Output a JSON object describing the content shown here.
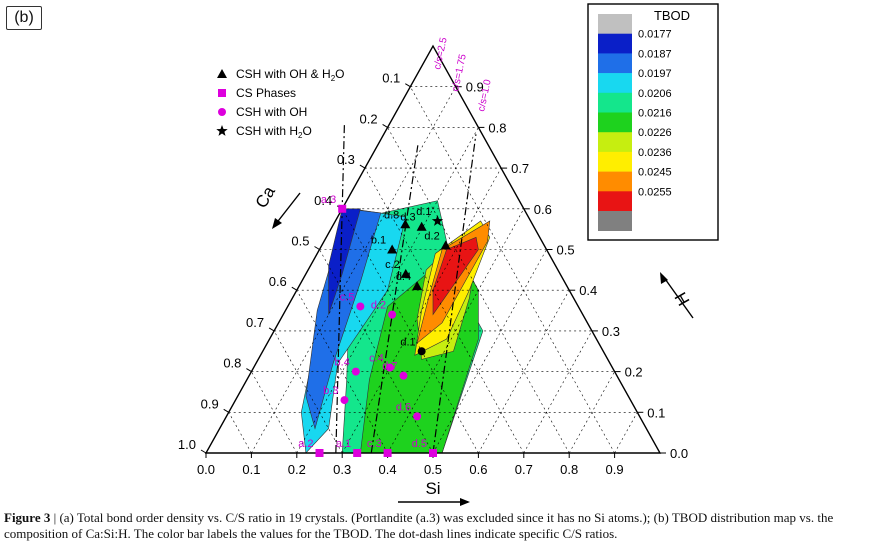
{
  "panel_label": "(b)",
  "caption": {
    "figure_number": "Figure 3",
    "separator": "|",
    "text": "(a) Total bond order density vs. C/S ratio in 19 crystals. (Portlandite (a.3) was excluded since it has no Si atoms.); (b) TBOD distribution map vs. the composition of Ca:Si:H. The color bar labels the values for the TBOD. The dot-dash lines indicate specific C/S ratios."
  },
  "colors": {
    "axis": "#000000",
    "point_label": "#cc00cc",
    "marker_cs": "#dd00dd",
    "marker_black": "#000000"
  },
  "chart_data": {
    "type": "ternary-contour",
    "axes": {
      "bottom": {
        "label": "Si",
        "ticks": [
          "0.0",
          "0.1",
          "0.2",
          "0.3",
          "0.4",
          "0.5",
          "0.6",
          "0.7",
          "0.8",
          "0.9"
        ]
      },
      "left": {
        "label": "Ca",
        "ticks": [
          "0.1",
          "0.2",
          "0.3",
          "0.4",
          "0.5",
          "0.6",
          "0.7",
          "0.8",
          "0.9",
          "1.0"
        ]
      },
      "right": {
        "label": "H",
        "ticks": [
          "0.0",
          "0.1",
          "0.2",
          "0.3",
          "0.4",
          "0.5",
          "0.6",
          "0.7",
          "0.8",
          "0.9"
        ]
      }
    },
    "colorbar": {
      "title": "TBOD",
      "levels": [
        {
          "label": "",
          "color": "#c0c0c0"
        },
        {
          "label": "0.0177",
          "color": "#0a1fc8"
        },
        {
          "label": "0.0187",
          "color": "#1f6fe8"
        },
        {
          "label": "0.0197",
          "color": "#18d8f0"
        },
        {
          "label": "0.0206",
          "color": "#14e68c"
        },
        {
          "label": "0.0216",
          "color": "#1ed21e"
        },
        {
          "label": "0.0226",
          "color": "#c6ee10"
        },
        {
          "label": "0.0236",
          "color": "#ffee00"
        },
        {
          "label": "0.0245",
          "color": "#ff8c00"
        },
        {
          "label": "0.0255",
          "color": "#e81414"
        },
        {
          "label": "",
          "color": "#808080"
        }
      ]
    },
    "legend": {
      "placement": "top-left",
      "entries": [
        {
          "symbol": "triangle",
          "color": "#000000",
          "label": "CSH with OH & H",
          "sub": "2",
          "tail": "O"
        },
        {
          "symbol": "square",
          "color": "#dd00dd",
          "label": "CS Phases",
          "sub": "",
          "tail": ""
        },
        {
          "symbol": "circle",
          "color": "#dd00dd",
          "label": "CSH with OH",
          "sub": "",
          "tail": ""
        },
        {
          "symbol": "star",
          "color": "#000000",
          "label": "CSH with  H",
          "sub": "2",
          "tail": "O"
        }
      ]
    },
    "cs_lines": [
      "c/s=2.5",
      "c/s=1.75",
      "c/s=1.0"
    ],
    "points": [
      {
        "label": "a.3",
        "symbol": "square",
        "si": 0.0,
        "h": 0.6
      },
      {
        "label": "a.2",
        "symbol": "square",
        "si": 0.25,
        "h": 0.0
      },
      {
        "label": "a.1",
        "symbol": "square",
        "si": 0.333,
        "h": 0.0
      },
      {
        "label": "c.3",
        "symbol": "square",
        "si": 0.4,
        "h": 0.0
      },
      {
        "label": "d.5",
        "symbol": "square",
        "si": 0.5,
        "h": 0.0
      },
      {
        "label": "c.5",
        "symbol": "circle",
        "si": 0.16,
        "h": 0.36
      },
      {
        "label": "d.2",
        "symbol": "circle",
        "si": 0.24,
        "h": 0.34
      },
      {
        "label": "b.4",
        "symbol": "circle",
        "si": 0.23,
        "h": 0.2
      },
      {
        "label": "b.3",
        "symbol": "circle",
        "si": 0.24,
        "h": 0.13
      },
      {
        "label": "c.4",
        "symbol": "circle",
        "si": 0.3,
        "h": 0.21
      },
      {
        "label": "d.7",
        "symbol": "circle",
        "si": 0.34,
        "h": 0.19
      },
      {
        "label": "d.6",
        "symbol": "circle",
        "si": 0.42,
        "h": 0.09
      },
      {
        "label": "d.1",
        "symbol": "circle-black",
        "si": 0.35,
        "h": 0.25
      },
      {
        "label": "d.8",
        "symbol": "triangle",
        "si": 0.158,
        "h": 0.562
      },
      {
        "label": "d.3",
        "symbol": "triangle",
        "si": 0.197,
        "h": 0.556
      },
      {
        "label": "b.1",
        "symbol": "triangle",
        "si": 0.16,
        "h": 0.5
      },
      {
        "label": "d.2",
        "symbol": "triangle",
        "si": 0.273,
        "h": 0.51
      },
      {
        "label": "c.2",
        "symbol": "triangle",
        "si": 0.22,
        "h": 0.44
      },
      {
        "label": "d.4",
        "symbol": "triangle",
        "si": 0.26,
        "h": 0.41
      },
      {
        "label": "d.1",
        "symbol": "star",
        "si": 0.225,
        "h": 0.57
      }
    ]
  }
}
